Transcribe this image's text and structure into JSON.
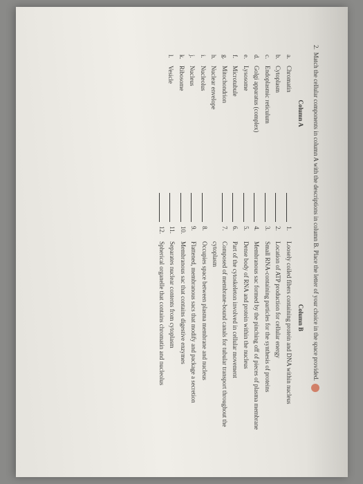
{
  "question": {
    "number": "2.",
    "text": "Match the cellular components in column A with the descriptions in column B. Place the letter of your choice in the space provided."
  },
  "columnA": {
    "title": "Column A",
    "items": [
      {
        "letter": "a.",
        "label": "Chromatin"
      },
      {
        "letter": "b.",
        "label": "Cytoplasm"
      },
      {
        "letter": "c.",
        "label": "Endoplasmic reticulum"
      },
      {
        "letter": "d.",
        "label": "Golgi apparatus (complex)"
      },
      {
        "letter": "e.",
        "label": "Lysosome"
      },
      {
        "letter": "f.",
        "label": "Microtubule"
      },
      {
        "letter": "g.",
        "label": "Mitochondrion"
      },
      {
        "letter": "h.",
        "label": "Nuclear envelope"
      },
      {
        "letter": "i.",
        "label": "Nucleolus"
      },
      {
        "letter": "j.",
        "label": "Nucleus"
      },
      {
        "letter": "k.",
        "label": "Ribosome"
      },
      {
        "letter": "l.",
        "label": "Vesicle"
      }
    ]
  },
  "columnB": {
    "title": "Column B",
    "items": [
      {
        "num": "1.",
        "desc": "Loosely coiled fibers containing protein and DNA within nucleus"
      },
      {
        "num": "2.",
        "desc": "Location of ATP production for cellular energy"
      },
      {
        "num": "3.",
        "desc": "Small RNA-containing particles for the synthesis of proteins"
      },
      {
        "num": "4.",
        "desc": "Membranous sac formed by the pinching off of pieces of plasma membrane"
      },
      {
        "num": "5.",
        "desc": "Dense body of RNA and protein within the nucleus"
      },
      {
        "num": "6.",
        "desc": "Part of the cytoskeleton involved in cellular movement"
      },
      {
        "num": "7.",
        "desc": "Composed of membrane-bound canals for tubular transport throughout the cytoplasm"
      },
      {
        "num": "8.",
        "desc": "Occupies space between plasma membrane and nucleus"
      },
      {
        "num": "9.",
        "desc": "Flattened, membranous sacs that modify and package a secretion"
      },
      {
        "num": "10.",
        "desc": "Membranous sac that contains digestive enzymes"
      },
      {
        "num": "11.",
        "desc": "Separates nuclear contents from cytoplasm"
      },
      {
        "num": "12.",
        "desc": "Spherical organelle that contains chromatin and nucleolus"
      }
    ]
  }
}
